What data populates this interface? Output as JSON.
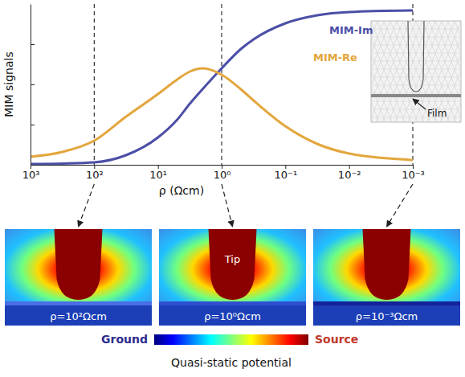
{
  "chart_data": {
    "type": "line",
    "y_label": "MIM signals",
    "x_label": "ρ (Ωcm)",
    "log": "x",
    "x": [
      1000,
      316,
      100,
      31.6,
      10,
      5,
      3.16,
      2,
      1,
      0.5,
      0.316,
      0.1,
      0.0316,
      0.01,
      0.001
    ],
    "xlim": [
      1000,
      0.001
    ],
    "xticks": [
      {
        "value": 1000,
        "label": "10³"
      },
      {
        "value": 100,
        "label": "10²"
      },
      {
        "value": 10,
        "label": "10¹"
      },
      {
        "value": 1,
        "label": "10⁰"
      },
      {
        "value": 0.1,
        "label": "10⁻¹"
      },
      {
        "value": 0.01,
        "label": "10⁻²"
      },
      {
        "value": 0.001,
        "label": "10⁻³"
      }
    ],
    "ylim": [
      0,
      1
    ],
    "yticks": [
      0.25,
      0.5,
      0.75
    ],
    "tick_labels": "x",
    "series": [
      {
        "name": "MIM-Im",
        "color": "#4b4fa6",
        "values": [
          0.005,
          0.008,
          0.015,
          0.06,
          0.17,
          0.28,
          0.38,
          0.47,
          0.6,
          0.72,
          0.78,
          0.88,
          0.93,
          0.95,
          0.96
        ]
      },
      {
        "name": "MIM-Re",
        "color": "#e3a63c",
        "values": [
          0.05,
          0.08,
          0.15,
          0.3,
          0.44,
          0.53,
          0.58,
          0.6,
          0.56,
          0.47,
          0.4,
          0.24,
          0.13,
          0.07,
          0.03
        ]
      }
    ]
  },
  "inset": {
    "label": "Film"
  },
  "panels": [
    {
      "rho": 100,
      "label": "ρ=10²Ωcm"
    },
    {
      "rho": 1,
      "label": "ρ=10⁰Ωcm",
      "annotation": "Tip"
    },
    {
      "rho": 0.001,
      "label": "ρ=10⁻³Ωcm"
    }
  ],
  "colorbar": {
    "low": "Ground",
    "high": "Source",
    "title": "Quasi-static potential"
  }
}
